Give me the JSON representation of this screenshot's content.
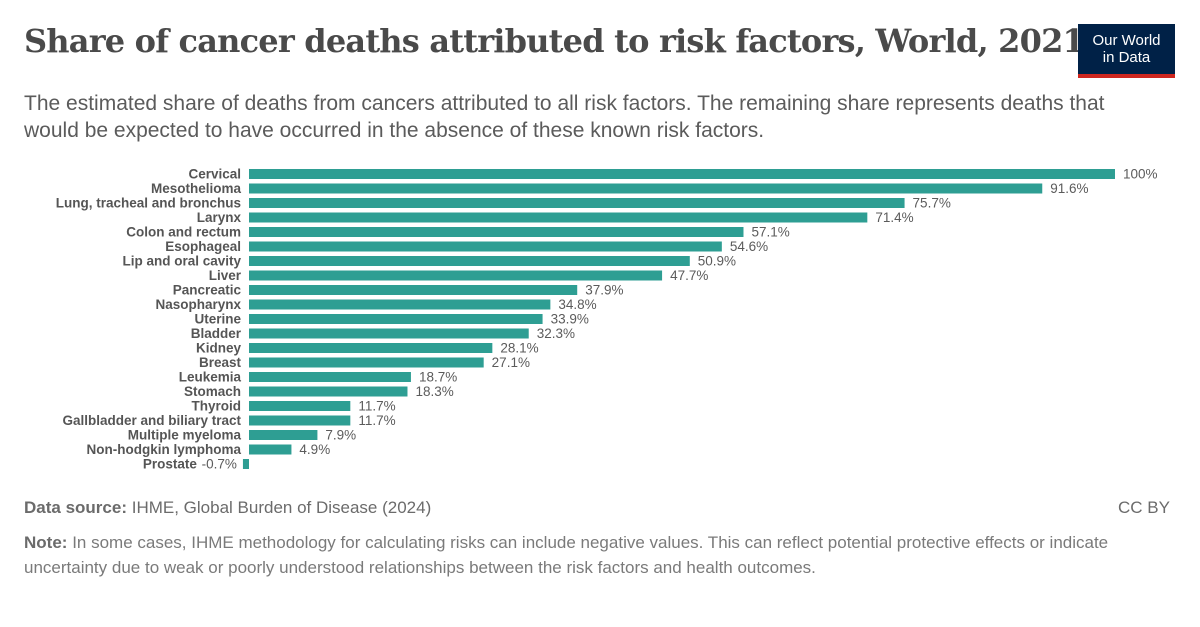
{
  "header": {
    "title": "Share of cancer deaths attributed to risk factors, World, 2021",
    "subtitle": "The estimated share of deaths from cancers attributed to all risk factors. The remaining share represents deaths that would be expected to have occurred in the absence of these known risk factors.",
    "logo_line1": "Our World",
    "logo_line2": "in Data"
  },
  "footer": {
    "source_label": "Data source:",
    "source_text": "IHME, Global Burden of Disease (2024)",
    "license": "CC BY",
    "note_label": "Note:",
    "note_text": "In some cases, IHME methodology for calculating risks can include negative values. This can reflect potential protective effects or indicate uncertainty due to weak or poorly understood relationships between the risk factors and health outcomes."
  },
  "colors": {
    "bar": "#2e9e93"
  },
  "chart_data": {
    "type": "bar",
    "orientation": "horizontal",
    "xlim": [
      -0.7,
      100
    ],
    "categories": [
      "Cervical",
      "Mesothelioma",
      "Lung, tracheal and bronchus",
      "Larynx",
      "Colon and rectum",
      "Esophageal",
      "Lip and oral cavity",
      "Liver",
      "Pancreatic",
      "Nasopharynx",
      "Uterine",
      "Bladder",
      "Kidney",
      "Breast",
      "Leukemia",
      "Stomach",
      "Thyroid",
      "Gallbladder and biliary tract",
      "Multiple myeloma",
      "Non-hodgkin lymphoma",
      "Prostate"
    ],
    "values": [
      100,
      91.6,
      75.7,
      71.4,
      57.1,
      54.6,
      50.9,
      47.7,
      37.9,
      34.8,
      33.9,
      32.3,
      28.1,
      27.1,
      18.7,
      18.3,
      11.7,
      11.7,
      7.9,
      4.9,
      -0.7
    ],
    "labels": [
      "100%",
      "91.6%",
      "75.7%",
      "71.4%",
      "57.1%",
      "54.6%",
      "50.9%",
      "47.7%",
      "37.9%",
      "34.8%",
      "33.9%",
      "32.3%",
      "28.1%",
      "27.1%",
      "18.7%",
      "18.3%",
      "11.7%",
      "11.7%",
      "7.9%",
      "4.9%",
      "-0.7%"
    ]
  }
}
